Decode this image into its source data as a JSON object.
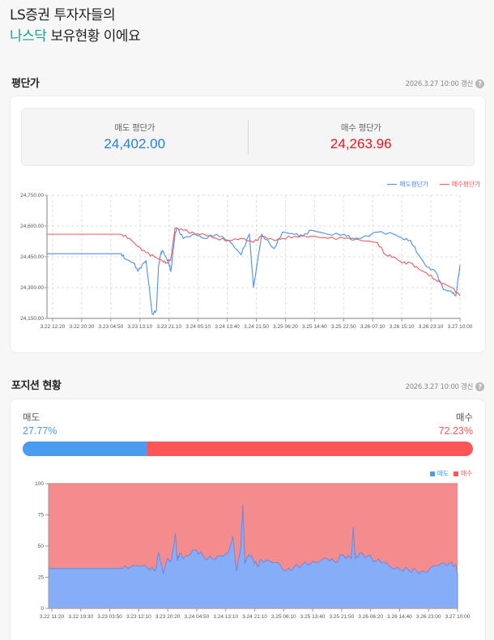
{
  "headline": {
    "line1": "LS증권 투자자들의",
    "accent": "나스닥",
    "line2_rest": " 보유현황 이에요"
  },
  "avg_section": {
    "title": "평단가",
    "updated": "2026.3.27 10:00 갱신",
    "help_icon": "?",
    "sell": {
      "label": "매도 평단가",
      "value": "24,402.00",
      "color": "#2a7de1"
    },
    "buy": {
      "label": "매수 평단가",
      "value": "24,263.96",
      "color": "#e8141e"
    },
    "legend": [
      {
        "label": "매도평단가",
        "color": "#4a8ff0"
      },
      {
        "label": "매수평단가",
        "color": "#f05a5a"
      }
    ]
  },
  "position_section": {
    "title": "포지션 현황",
    "updated": "2026.3.27 10:00 갱신",
    "help_icon": "?",
    "sell": {
      "label": "매도",
      "pct": "27.77%",
      "value": 27.77,
      "color": "#4a9cf0"
    },
    "buy": {
      "label": "매수",
      "pct": "72.23%",
      "value": 72.23,
      "color": "#ff5556"
    },
    "legend": [
      {
        "label": "매도",
        "color": "#4a9cf0"
      },
      {
        "label": "매수",
        "color": "#ff5556"
      }
    ]
  },
  "chart_data": [
    {
      "type": "line",
      "title": "평단가",
      "xlabel": "",
      "ylabel": "",
      "ylim": [
        24150,
        24750
      ],
      "y_ticks": [
        "24,150.00",
        "24,300.00",
        "24,450.00",
        "24,600.00",
        "24,750.00"
      ],
      "x_ticks": [
        "3.22 12:20",
        "3.22 20:30",
        "3.23 04:50",
        "3.23 13:10",
        "3.23 21:10",
        "3.24 05:10",
        "3.24 13:40",
        "3.24 21:50",
        "3.25 06:20",
        "3.25 14:40",
        "3.25 22:50",
        "3.26 07:10",
        "3.26 15:10",
        "3.26 23:10",
        "3.27 10:00"
      ],
      "grid": true,
      "legend_position": "top-right",
      "series": [
        {
          "name": "매도평단가",
          "color": "#4a8ff0",
          "x_frac": [
            0,
            0.18,
            0.19,
            0.21,
            0.22,
            0.235,
            0.24,
            0.255,
            0.265,
            0.27,
            0.275,
            0.28,
            0.29,
            0.295,
            0.3,
            0.31,
            0.315,
            0.33,
            0.36,
            0.38,
            0.41,
            0.44,
            0.47,
            0.49,
            0.5,
            0.52,
            0.55,
            0.57,
            0.6,
            0.62,
            0.64,
            0.68,
            0.72,
            0.74,
            0.76,
            0.8,
            0.84,
            0.86,
            0.88,
            0.9,
            0.92,
            0.94,
            0.96,
            0.98,
            0.99,
            1.0
          ],
          "values": [
            24465,
            24465,
            24440,
            24420,
            24380,
            24420,
            24430,
            24170,
            24190,
            24400,
            24460,
            24480,
            24440,
            24420,
            24380,
            24560,
            24590,
            24540,
            24560,
            24540,
            24560,
            24530,
            24460,
            24560,
            24300,
            24560,
            24490,
            24570,
            24560,
            24550,
            24580,
            24560,
            24560,
            24540,
            24540,
            24570,
            24560,
            24540,
            24530,
            24460,
            24400,
            24380,
            24290,
            24280,
            24260,
            24410
          ]
        },
        {
          "name": "매수평단가",
          "color": "#f05a5a",
          "x_frac": [
            0,
            0.18,
            0.2,
            0.22,
            0.24,
            0.26,
            0.28,
            0.29,
            0.3,
            0.31,
            0.33,
            0.36,
            0.38,
            0.41,
            0.44,
            0.47,
            0.5,
            0.52,
            0.55,
            0.57,
            0.6,
            0.64,
            0.68,
            0.72,
            0.76,
            0.8,
            0.82,
            0.84,
            0.86,
            0.88,
            0.9,
            0.92,
            0.94,
            0.96,
            0.98,
            1.0
          ],
          "values": [
            24560,
            24560,
            24540,
            24500,
            24470,
            24450,
            24430,
            24420,
            24440,
            24590,
            24580,
            24560,
            24560,
            24540,
            24530,
            24540,
            24520,
            24550,
            24530,
            24540,
            24550,
            24550,
            24540,
            24540,
            24530,
            24520,
            24460,
            24450,
            24420,
            24420,
            24390,
            24370,
            24340,
            24320,
            24300,
            24260
          ]
        }
      ]
    },
    {
      "type": "area",
      "title": "포지션 현황",
      "stacked": true,
      "percent": true,
      "ylim": [
        0,
        100
      ],
      "y_ticks": [
        "0",
        "25",
        "50",
        "75",
        "100"
      ],
      "x_ticks": [
        "3.22 11:20",
        "3.22 19:30",
        "3.23 03:50",
        "3.23 12:10",
        "3.23 20:20",
        "3.24 04:50",
        "3.24 13:10",
        "3.24 21:10",
        "3.25 06:10",
        "3.25 13:40",
        "3.25 21:50",
        "3.26 06:20",
        "3.26 14:40",
        "3.26 23:00",
        "3.27 10:00"
      ],
      "grid": false,
      "legend_position": "top-right",
      "series": [
        {
          "name": "매도",
          "color": "#86adf7",
          "x_frac": [
            0,
            0.18,
            0.2,
            0.22,
            0.24,
            0.26,
            0.27,
            0.28,
            0.29,
            0.3,
            0.31,
            0.315,
            0.32,
            0.33,
            0.34,
            0.36,
            0.38,
            0.4,
            0.42,
            0.44,
            0.45,
            0.46,
            0.47,
            0.475,
            0.48,
            0.49,
            0.5,
            0.51,
            0.52,
            0.54,
            0.56,
            0.58,
            0.6,
            0.62,
            0.64,
            0.66,
            0.68,
            0.7,
            0.72,
            0.74,
            0.745,
            0.75,
            0.76,
            0.78,
            0.8,
            0.82,
            0.84,
            0.86,
            0.88,
            0.9,
            0.92,
            0.94,
            0.96,
            0.98,
            0.995,
            1.0
          ],
          "values": [
            32,
            32,
            33,
            34,
            33,
            30,
            45,
            28,
            40,
            38,
            60,
            38,
            44,
            40,
            42,
            47,
            41,
            40,
            42,
            45,
            58,
            30,
            50,
            83,
            36,
            43,
            39,
            34,
            39,
            38,
            37,
            30,
            33,
            35,
            36,
            37,
            40,
            37,
            43,
            40,
            65,
            40,
            44,
            42,
            38,
            37,
            32,
            31,
            31,
            30,
            29,
            34,
            36,
            36,
            35,
            28
          ]
        },
        {
          "name": "매수",
          "color": "#f48b8c",
          "note": "100 - 매도"
        }
      ]
    }
  ]
}
